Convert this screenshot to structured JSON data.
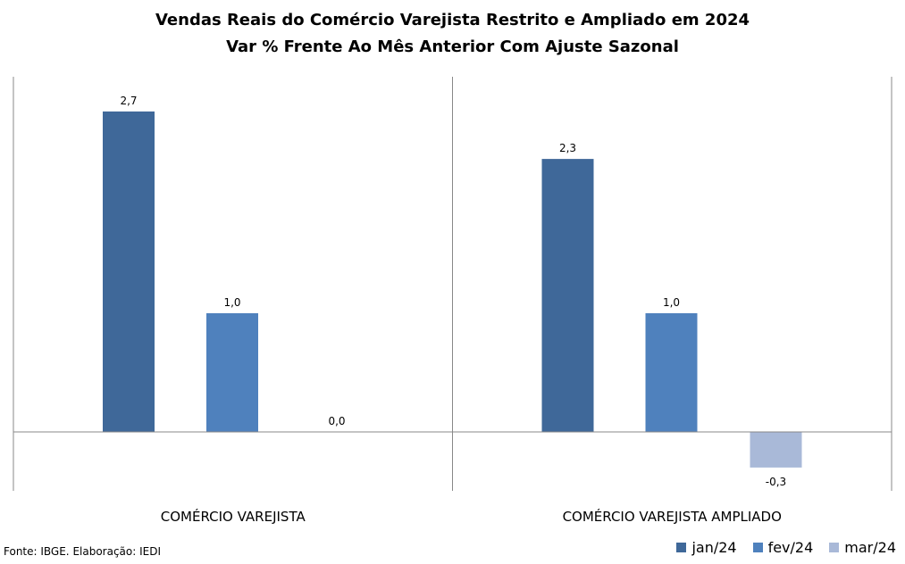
{
  "chart_data": {
    "type": "bar",
    "title": "Vendas Reais do Comércio Varejista Restrito e Ampliado em 2024",
    "subtitle": "Var % Frente Ao Mês Anterior Com Ajuste Sazonal",
    "categories": [
      "COMÉRCIO VAREJISTA",
      "COMÉRCIO VAREJISTA AMPLIADO"
    ],
    "series": [
      {
        "name": "jan/24",
        "color": "#3F6899",
        "values": [
          2.7,
          2.3
        ],
        "labels": [
          "2,7",
          "2,3"
        ]
      },
      {
        "name": "fev/24",
        "color": "#4F81BD",
        "values": [
          1.0,
          1.0
        ],
        "labels": [
          "1,0",
          "1,0"
        ]
      },
      {
        "name": "mar/24",
        "color": "#A9B9D8",
        "values": [
          0.0,
          -0.3
        ],
        "labels": [
          "0,0",
          "-0,3"
        ]
      }
    ],
    "legend": "bottom-right",
    "grid": false
  },
  "source": "Fonte: IBGE. Elaboração: IEDI"
}
